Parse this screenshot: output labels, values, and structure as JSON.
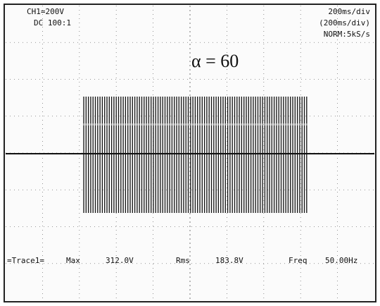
{
  "header": {
    "channel": "CH1=200V",
    "coupling": "DC 100:1",
    "timebase": "200ms/div",
    "timebase_sub": "(200ms/div)",
    "mode": "NORM:5kS/s"
  },
  "annotation": "α = 60",
  "measurements": {
    "trace": "=Trace1=",
    "max_label": "Max",
    "max_value": "312.0V",
    "rms_label": "Rms",
    "rms_value": "183.8V",
    "freq_label": "Freq",
    "freq_value": "50.00Hz"
  }
}
